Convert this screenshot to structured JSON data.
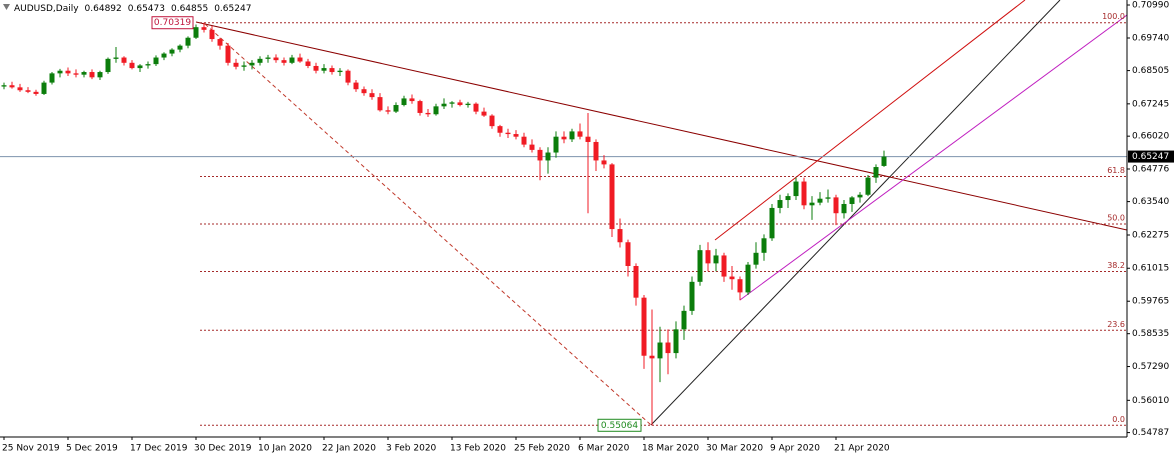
{
  "chart_data": {
    "type": "candlestick",
    "title": "AUDUSD,Daily",
    "categories": [
      "25 Nov 2019",
      null,
      null,
      null,
      null,
      null,
      null,
      null,
      "5 Dec 2019",
      null,
      null,
      null,
      null,
      null,
      null,
      null,
      "17 Dec 2019",
      null,
      null,
      null,
      null,
      null,
      null,
      null,
      "30 Dec 2019",
      null,
      null,
      null,
      null,
      null,
      null,
      null,
      "10 Jan 2020",
      null,
      null,
      null,
      null,
      null,
      null,
      null,
      "22 Jan 2020",
      null,
      null,
      null,
      null,
      null,
      null,
      null,
      "3 Feb 2020",
      null,
      null,
      null,
      null,
      null,
      null,
      null,
      "13 Feb 2020",
      null,
      null,
      null,
      null,
      null,
      null,
      null,
      "25 Feb 2020",
      null,
      null,
      null,
      null,
      null,
      null,
      null,
      "6 Mar 2020",
      null,
      null,
      null,
      null,
      null,
      null,
      null,
      "18 Mar 2020",
      null,
      null,
      null,
      null,
      null,
      null,
      null,
      "30 Mar 2020",
      null,
      null,
      null,
      null,
      null,
      null,
      null,
      "9 Apr 2020",
      null,
      null,
      null,
      null,
      null,
      null,
      null,
      "21 Apr 2020",
      null,
      null,
      null,
      null,
      null,
      null
    ],
    "open": [
      0.679,
      0.6795,
      0.6787,
      0.6776,
      0.677,
      0.6762,
      0.6805,
      0.684,
      0.685,
      0.684,
      0.6835,
      0.6845,
      0.6825,
      0.6845,
      0.6895,
      0.69,
      0.688,
      0.686,
      0.687,
      0.6875,
      0.69,
      0.6915,
      0.693,
      0.6945,
      0.6975,
      0.7015,
      0.7005,
      0.697,
      0.6945,
      0.688,
      0.6865,
      0.687,
      0.688,
      0.6895,
      0.69,
      0.689,
      0.688,
      0.69,
      0.6885,
      0.6868,
      0.685,
      0.686,
      0.6845,
      0.685,
      0.6805,
      0.678,
      0.6765,
      0.675,
      0.67,
      0.6695,
      0.672,
      0.6745,
      0.6735,
      0.669,
      0.6685,
      0.6715,
      0.6725,
      0.673,
      0.672,
      0.6725,
      0.6695,
      0.668,
      0.664,
      0.6615,
      0.661,
      0.66,
      0.657,
      0.655,
      0.651,
      0.654,
      0.66,
      0.659,
      0.662,
      0.66,
      0.658,
      0.651,
      0.6495,
      0.625,
      0.62,
      0.611,
      0.599,
      0.577,
      0.576,
      0.582,
      0.578,
      0.587,
      0.594,
      0.605,
      0.617,
      0.612,
      0.615,
      0.607,
      0.606,
      0.601,
      0.6115,
      0.616,
      0.6215,
      0.633,
      0.636,
      0.6375,
      0.643,
      0.634,
      0.635,
      0.6365,
      0.637,
      0.631,
      0.6345,
      0.637,
      0.638,
      0.6445,
      0.64892
    ],
    "high": [
      0.6805,
      0.6808,
      0.68,
      0.6788,
      0.6778,
      0.6812,
      0.6845,
      0.6857,
      0.6862,
      0.6855,
      0.685,
      0.6855,
      0.685,
      0.69,
      0.694,
      0.6905,
      0.689,
      0.6875,
      0.6885,
      0.6908,
      0.692,
      0.6935,
      0.695,
      0.698,
      0.7025,
      0.70319,
      0.702,
      0.6975,
      0.6955,
      0.6895,
      0.6885,
      0.689,
      0.6905,
      0.691,
      0.6912,
      0.69,
      0.691,
      0.6915,
      0.6895,
      0.688,
      0.6875,
      0.687,
      0.686,
      0.6855,
      0.6815,
      0.679,
      0.678,
      0.6765,
      0.6715,
      0.673,
      0.6755,
      0.676,
      0.674,
      0.6705,
      0.6725,
      0.6745,
      0.6735,
      0.674,
      0.6732,
      0.673,
      0.671,
      0.6685,
      0.6645,
      0.663,
      0.6625,
      0.6615,
      0.659,
      0.656,
      0.656,
      0.662,
      0.662,
      0.663,
      0.665,
      0.669,
      0.659,
      0.653,
      0.65,
      0.629,
      0.621,
      0.612,
      0.6,
      0.5945,
      0.588,
      0.587,
      0.59,
      0.596,
      0.607,
      0.619,
      0.62,
      0.6175,
      0.616,
      0.611,
      0.607,
      0.6125,
      0.62,
      0.623,
      0.6345,
      0.638,
      0.6385,
      0.6445,
      0.6445,
      0.6375,
      0.639,
      0.64,
      0.638,
      0.636,
      0.6375,
      0.639,
      0.6455,
      0.6495,
      0.65473
    ],
    "low": [
      0.678,
      0.6782,
      0.677,
      0.6765,
      0.6755,
      0.6758,
      0.6798,
      0.6825,
      0.683,
      0.6825,
      0.6825,
      0.6818,
      0.6815,
      0.6838,
      0.688,
      0.687,
      0.6855,
      0.6845,
      0.6858,
      0.6868,
      0.689,
      0.6905,
      0.692,
      0.6935,
      0.697,
      0.6995,
      0.696,
      0.693,
      0.687,
      0.6855,
      0.685,
      0.6855,
      0.687,
      0.688,
      0.688,
      0.687,
      0.6875,
      0.688,
      0.686,
      0.684,
      0.684,
      0.6835,
      0.683,
      0.6795,
      0.677,
      0.6755,
      0.674,
      0.6695,
      0.6685,
      0.669,
      0.6715,
      0.6725,
      0.668,
      0.6675,
      0.668,
      0.6705,
      0.671,
      0.6715,
      0.671,
      0.6685,
      0.6675,
      0.663,
      0.66,
      0.6595,
      0.659,
      0.656,
      0.654,
      0.6435,
      0.646,
      0.652,
      0.6575,
      0.658,
      0.659,
      0.631,
      0.647,
      0.648,
      0.622,
      0.618,
      0.607,
      0.596,
      0.572,
      0.55064,
      0.567,
      0.57,
      0.576,
      0.583,
      0.5925,
      0.6035,
      0.609,
      0.609,
      0.605,
      0.602,
      0.598,
      0.6,
      0.61,
      0.613,
      0.6205,
      0.631,
      0.633,
      0.636,
      0.6325,
      0.6285,
      0.634,
      0.635,
      0.6265,
      0.629,
      0.6315,
      0.635,
      0.6375,
      0.6425,
      0.64855
    ],
    "close": [
      0.6795,
      0.6787,
      0.6776,
      0.677,
      0.6762,
      0.6805,
      0.684,
      0.685,
      0.684,
      0.6835,
      0.6845,
      0.6825,
      0.6845,
      0.6895,
      0.69,
      0.688,
      0.686,
      0.687,
      0.6875,
      0.69,
      0.6915,
      0.693,
      0.6945,
      0.6975,
      0.7015,
      0.7005,
      0.697,
      0.6945,
      0.688,
      0.6865,
      0.687,
      0.688,
      0.6895,
      0.69,
      0.689,
      0.688,
      0.69,
      0.6885,
      0.6868,
      0.685,
      0.686,
      0.6845,
      0.685,
      0.6805,
      0.678,
      0.6765,
      0.675,
      0.67,
      0.6695,
      0.672,
      0.6745,
      0.6735,
      0.669,
      0.6685,
      0.6715,
      0.6725,
      0.673,
      0.672,
      0.6725,
      0.6695,
      0.668,
      0.664,
      0.6615,
      0.661,
      0.66,
      0.657,
      0.655,
      0.651,
      0.654,
      0.66,
      0.659,
      0.662,
      0.66,
      0.658,
      0.651,
      0.6495,
      0.625,
      0.62,
      0.611,
      0.599,
      0.577,
      0.576,
      0.582,
      0.578,
      0.587,
      0.594,
      0.605,
      0.617,
      0.612,
      0.615,
      0.607,
      0.606,
      0.601,
      0.6115,
      0.616,
      0.6215,
      0.633,
      0.636,
      0.6375,
      0.643,
      0.634,
      0.635,
      0.6365,
      0.637,
      0.631,
      0.6345,
      0.637,
      0.638,
      0.6445,
      0.6485,
      0.65247
    ],
    "up_color": "#0b7d0b",
    "down_color": "#f01b24",
    "ylim": [
      0.5462,
      0.7118
    ],
    "yticks": [
      {
        "value": 0.7099,
        "label": "0.70990"
      },
      {
        "value": 0.6974,
        "label": "0.69740"
      },
      {
        "value": 0.68505,
        "label": "0.68505"
      },
      {
        "value": 0.67245,
        "label": "0.67245"
      },
      {
        "value": 0.6602,
        "label": "0.66020"
      },
      {
        "value": 0.64776,
        "label": "0.64776"
      },
      {
        "value": 0.6354,
        "label": "0.63540"
      },
      {
        "value": 0.62275,
        "label": "0.62275"
      },
      {
        "value": 0.61015,
        "label": "0.61015"
      },
      {
        "value": 0.59765,
        "label": "0.59765"
      },
      {
        "value": 0.58535,
        "label": "0.58535"
      },
      {
        "value": 0.5729,
        "label": "0.57290"
      },
      {
        "value": 0.5601,
        "label": "0.56010"
      },
      {
        "value": 0.54787,
        "label": "0.54787"
      }
    ],
    "fib": {
      "high": 0.70319,
      "low": 0.55064,
      "levels": [
        {
          "value": 0,
          "label": "0.0"
        },
        23.6,
        38.2,
        {
          "value": 50,
          "label": "50.0"
        },
        61.8,
        {
          "value": 100,
          "label": "100.0"
        }
      ]
    }
  }
}
